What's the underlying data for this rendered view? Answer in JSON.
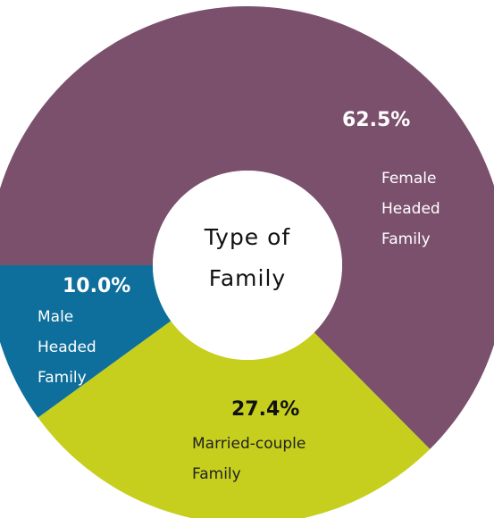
{
  "chart_data": {
    "type": "donut",
    "title": "Type of Family",
    "categories": [
      "Female Headed Family",
      "Married-couple Family",
      "Male Headed Family"
    ],
    "values": [
      62.5,
      27.4,
      10.0
    ],
    "value_labels": [
      "62.5%",
      "27.4%",
      "10.0%"
    ],
    "colors": [
      "#7b506c",
      "#c6cf1e",
      "#0e6f9c"
    ]
  }
}
